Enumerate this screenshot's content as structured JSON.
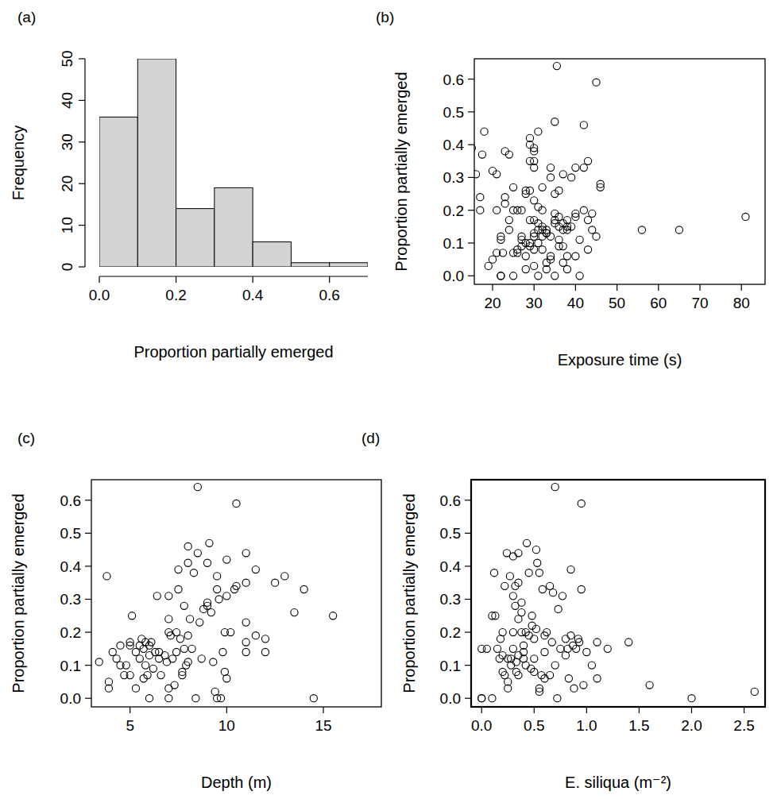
{
  "chart_data": [
    {
      "type": "histogram",
      "title": "(a)",
      "x_label": "Proportion partially emerged",
      "y_label": "Frequency",
      "bins": [
        0,
        0.1,
        0.2,
        0.3,
        0.4,
        0.5,
        0.6,
        0.7
      ],
      "values": [
        36,
        50,
        14,
        19,
        6,
        1,
        1
      ],
      "color": "#d3d3d3",
      "xlim": [
        0,
        0.7
      ],
      "xticks": [
        {
          "value": 0,
          "label": "0.0"
        },
        0.2,
        0.4,
        0.6
      ],
      "ylim": [
        0,
        50
      ],
      "yticks": [
        0,
        10,
        20,
        30,
        40,
        50
      ]
    },
    {
      "type": "scatter",
      "title": "(b)",
      "x_label": "Exposure time (s)",
      "y_label": "Proportion partially emerged",
      "color": "#000000",
      "marker": "open-circle",
      "x": [
        15,
        16,
        17,
        17,
        18,
        17.5,
        19,
        20,
        20,
        21,
        21,
        21,
        22,
        22,
        22,
        22,
        22.5,
        23,
        23,
        23,
        24,
        24,
        24,
        25,
        25,
        25,
        25,
        26,
        26,
        26,
        27,
        27,
        27,
        27,
        28,
        28,
        28,
        28,
        28,
        29,
        29,
        29,
        29,
        29,
        29,
        29,
        30,
        30,
        30,
        30,
        30,
        30,
        30,
        30,
        30,
        30,
        31,
        31,
        31,
        31,
        31,
        31,
        32,
        32,
        32,
        32,
        32,
        32,
        33,
        33,
        33,
        33,
        33,
        34,
        34,
        34,
        34,
        34,
        35,
        35,
        35,
        35,
        35,
        35,
        35.5,
        36,
        36,
        36,
        36,
        36,
        37,
        37,
        37,
        37,
        37,
        38,
        38,
        38,
        38,
        38,
        39,
        39,
        40,
        40,
        40,
        40,
        41,
        41,
        42,
        42,
        42,
        43,
        43,
        43,
        44,
        44,
        45,
        45,
        46,
        46,
        56,
        65,
        81
      ],
      "values": [
        0.39,
        0.31,
        0.24,
        0.2,
        0.44,
        0.37,
        0.03,
        0.05,
        0.32,
        0.31,
        0.07,
        0.2,
        0,
        0,
        0.12,
        0.11,
        0.07,
        0.38,
        0.22,
        0.24,
        0.14,
        0.37,
        0.17,
        0.07,
        0.27,
        0,
        0.2,
        0.08,
        0.07,
        0.2,
        0.2,
        0.11,
        0.12,
        0.09,
        0.1,
        0.25,
        0.26,
        0.06,
        0.02,
        0.26,
        0.35,
        0.42,
        0.4,
        0.17,
        0.1,
        0.09,
        0.35,
        0.33,
        0.39,
        0.38,
        0.23,
        0.17,
        0.12,
        0.13,
        0.08,
        0.03,
        0.44,
        0.21,
        0.16,
        0.14,
        0.1,
        0,
        0.08,
        0.12,
        0.14,
        0.15,
        0.2,
        0.27,
        0.13,
        0.14,
        0.13,
        0.04,
        0.02,
        0.3,
        0.33,
        0.12,
        0.05,
        0.06,
        0,
        0.16,
        0.17,
        0.19,
        0.25,
        0.47,
        0.64,
        0.09,
        0.11,
        0.15,
        0.18,
        0.26,
        0.04,
        0.09,
        0.16,
        0.14,
        0.31,
        0.14,
        0.15,
        0.17,
        0.06,
        0.02,
        0.3,
        0.15,
        0.18,
        0.33,
        0.06,
        0.19,
        0,
        0.11,
        0.46,
        0.33,
        0.2,
        0.08,
        0.35,
        0.17,
        0.14,
        0.19,
        0.59,
        0.12,
        0.27,
        0.28,
        0.14,
        0.14,
        0.18
      ],
      "xlim": [
        15.6,
        85.7
      ],
      "xticks": [
        20,
        30,
        40,
        50,
        60,
        70,
        80
      ],
      "ylim": [
        -0.026,
        0.662
      ],
      "yticks": [
        {
          "value": 0,
          "label": "0.0"
        },
        0.1,
        0.2,
        0.3,
        0.4,
        0.5,
        0.6
      ]
    },
    {
      "type": "scatter",
      "title": "(c)",
      "x_label": "Depth (m)",
      "y_label": "Proportion partially emerged",
      "color": "#000000",
      "marker": "open-circle",
      "x": [
        3.4,
        3.8,
        3.9,
        3.9,
        4.1,
        4.3,
        4.5,
        4.5,
        4.7,
        4.8,
        5,
        5,
        5,
        5.1,
        5.3,
        5.3,
        5.5,
        5.5,
        5.6,
        5.7,
        5.7,
        5.8,
        5.8,
        5.9,
        6,
        6,
        6,
        6.1,
        6.2,
        6.3,
        6.4,
        6.5,
        6.5,
        6.6,
        6.8,
        6.9,
        7,
        7,
        7,
        7,
        7,
        7.1,
        7.2,
        7.3,
        7.4,
        7.4,
        7.5,
        7.5,
        7.6,
        7.7,
        7.7,
        7.8,
        7.8,
        7.9,
        8,
        8,
        8,
        8,
        8.1,
        8.2,
        8.3,
        8.4,
        8.5,
        8.5,
        8.6,
        8.7,
        8.8,
        9,
        9,
        9,
        9.1,
        9.2,
        9.3,
        9.4,
        9.5,
        9.5,
        9.5,
        9.6,
        9.7,
        9.8,
        9.9,
        9.9,
        10,
        10,
        10,
        10.2,
        10.4,
        10.5,
        10.5,
        11,
        11,
        11,
        11,
        11,
        11.5,
        11.5,
        12,
        12,
        12.5,
        13,
        13.5,
        14,
        14.5,
        15.5
      ],
      "values": [
        0.11,
        0.37,
        0.05,
        0.03,
        0.14,
        0.12,
        0.16,
        0.1,
        0.07,
        0.1,
        0.07,
        0.16,
        0.17,
        0.25,
        0.14,
        0.03,
        0.12,
        0.16,
        0.18,
        0.15,
        0.06,
        0.1,
        0.17,
        0.07,
        0.13,
        0.16,
        0,
        0.17,
        0.09,
        0.14,
        0.31,
        0.14,
        0.12,
        0.07,
        0.13,
        0.11,
        0.03,
        0.2,
        0.24,
        0.31,
        0,
        0.19,
        0.12,
        0.04,
        0.14,
        0.2,
        0.33,
        0.39,
        0.18,
        0.08,
        0.07,
        0.15,
        0.28,
        0.1,
        0.41,
        0.46,
        0.19,
        0.11,
        0.24,
        0.15,
        0.38,
        0,
        0.64,
        0.44,
        0.23,
        0.12,
        0.27,
        0.28,
        0.29,
        0.41,
        0.47,
        0.26,
        0.11,
        0.02,
        0,
        0.37,
        0.33,
        0.3,
        0,
        0.14,
        0.2,
        0.08,
        0.31,
        0.42,
        0.06,
        0.2,
        0.33,
        0.59,
        0.34,
        0.44,
        0.35,
        0.23,
        0.17,
        0.14,
        0.39,
        0.19,
        0.18,
        0.14,
        0.35,
        0.37,
        0.26,
        0.33,
        0,
        0.25
      ],
      "xlim": [
        3,
        18
      ],
      "xticks": [
        5,
        10,
        15
      ],
      "ylim": [
        -0.026,
        0.662
      ],
      "yticks": [
        {
          "value": 0,
          "label": "0.0"
        },
        0.1,
        0.2,
        0.3,
        0.4,
        0.5,
        0.6
      ]
    },
    {
      "type": "scatter",
      "title": "(d)",
      "x_label": "E. siliqua  (m⁻²)",
      "y_label": "Proportion partially emerged",
      "color": "#000000",
      "marker": "open-circle",
      "x": [
        0,
        0,
        0,
        0.05,
        0.1,
        0.1,
        0.12,
        0.13,
        0.15,
        0.17,
        0.18,
        0.2,
        0.2,
        0.2,
        0.22,
        0.22,
        0.24,
        0.25,
        0.25,
        0.25,
        0.27,
        0.28,
        0.28,
        0.3,
        0.3,
        0.3,
        0.3,
        0.32,
        0.32,
        0.33,
        0.33,
        0.35,
        0.35,
        0.35,
        0.35,
        0.35,
        0.38,
        0.38,
        0.38,
        0.4,
        0.4,
        0.4,
        0.42,
        0.42,
        0.43,
        0.45,
        0.45,
        0.47,
        0.48,
        0.48,
        0.5,
        0.5,
        0.5,
        0.52,
        0.52,
        0.53,
        0.55,
        0.55,
        0.55,
        0.57,
        0.58,
        0.6,
        0.6,
        0.6,
        0.62,
        0.65,
        0.65,
        0.67,
        0.68,
        0.7,
        0.7,
        0.72,
        0.73,
        0.75,
        0.77,
        0.8,
        0.8,
        0.82,
        0.83,
        0.85,
        0.85,
        0.87,
        0.88,
        0.9,
        0.92,
        0.93,
        0.95,
        0.95,
        0.97,
        1,
        1.05,
        1.1,
        1.1,
        1.2,
        1.4,
        1.6,
        2,
        2.6
      ],
      "values": [
        0,
        0,
        0.15,
        0.15,
        0.25,
        0,
        0.38,
        0.25,
        0.15,
        0.12,
        0.18,
        0.2,
        0.08,
        0.13,
        0.07,
        0.34,
        0.44,
        0.12,
        0.03,
        0.05,
        0.37,
        0.12,
        0.1,
        0.31,
        0.43,
        0.2,
        0.15,
        0.34,
        0.28,
        0.08,
        0.11,
        0.44,
        0.35,
        0.24,
        0.13,
        0.07,
        0.29,
        0.26,
        0.2,
        0.14,
        0.12,
        0.16,
        0.2,
        0.1,
        0.47,
        0.38,
        0.19,
        0.09,
        0.25,
        0.22,
        0.18,
        0.12,
        0.08,
        0.45,
        0.21,
        0.41,
        0.38,
        0.02,
        0.03,
        0.07,
        0.33,
        0.06,
        0.19,
        0.14,
        0.2,
        0.07,
        0.34,
        0.17,
        0.32,
        0.64,
        0.1,
        0,
        0.27,
        0.15,
        0.31,
        0.18,
        0.13,
        0.15,
        0.06,
        0.39,
        0.19,
        0.16,
        0.03,
        0.15,
        0.18,
        0.17,
        0.33,
        0.59,
        0.04,
        0.14,
        0.1,
        0.17,
        0.06,
        0.15,
        0.17,
        0.04,
        0,
        0.02
      ],
      "xlim": [
        -0.1,
        2.7
      ],
      "xticks": [
        {
          "value": 0,
          "label": "0.0"
        },
        0.5,
        {
          "value": 1,
          "label": "1.0"
        },
        1.5,
        {
          "value": 2,
          "label": "2.0"
        },
        2.5
      ],
      "ylim": [
        -0.026,
        0.662
      ],
      "yticks": [
        {
          "value": 0,
          "label": "0.0"
        },
        0.1,
        0.2,
        0.3,
        0.4,
        0.5,
        0.6
      ]
    }
  ]
}
